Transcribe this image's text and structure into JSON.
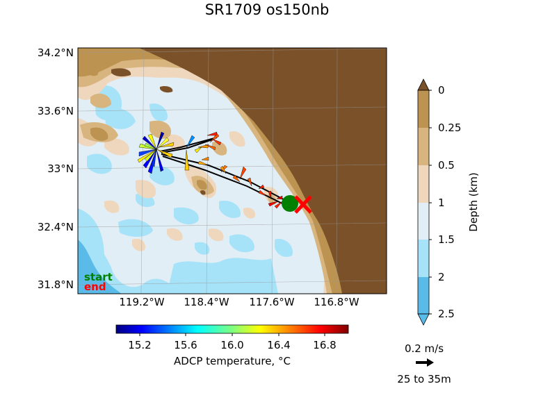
{
  "title": "SR1709 os150nb",
  "map": {
    "lat_ticks": [
      "34.2°N",
      "33.6°N",
      "33°N",
      "32.4°N",
      "31.8°N"
    ],
    "lon_ticks": [
      "119.2°W",
      "118.4°W",
      "117.6°W",
      "116.8°W"
    ],
    "legend_start": "start",
    "legend_end": "end",
    "colors": {
      "land": "#7a5129",
      "shelf_0_025": "#bc9350",
      "shelf_025_05": "#d8b47f",
      "slope_05_1": "#efd7be",
      "deep_1_15": "#e2eef5",
      "deep_15_2": "#a6e2f8",
      "deep_2_25": "#5bbbe8",
      "track": "#000000",
      "start_marker": "#008000",
      "end_marker": "#ff0000"
    }
  },
  "depth_colorbar": {
    "label": "Depth (km)",
    "ticks": [
      "0",
      "0.25",
      "0.5",
      "1",
      "1.5",
      "2",
      "2.5"
    ]
  },
  "temp_colorbar": {
    "label": "ADCP temperature, °C",
    "ticks": [
      "15.2",
      "15.6",
      "16.0",
      "16.4",
      "16.8"
    ],
    "range": [
      15.0,
      17.0
    ]
  },
  "quiver_key": {
    "speed": "0.2 m/s",
    "depth_range": "25 to 35m"
  }
}
